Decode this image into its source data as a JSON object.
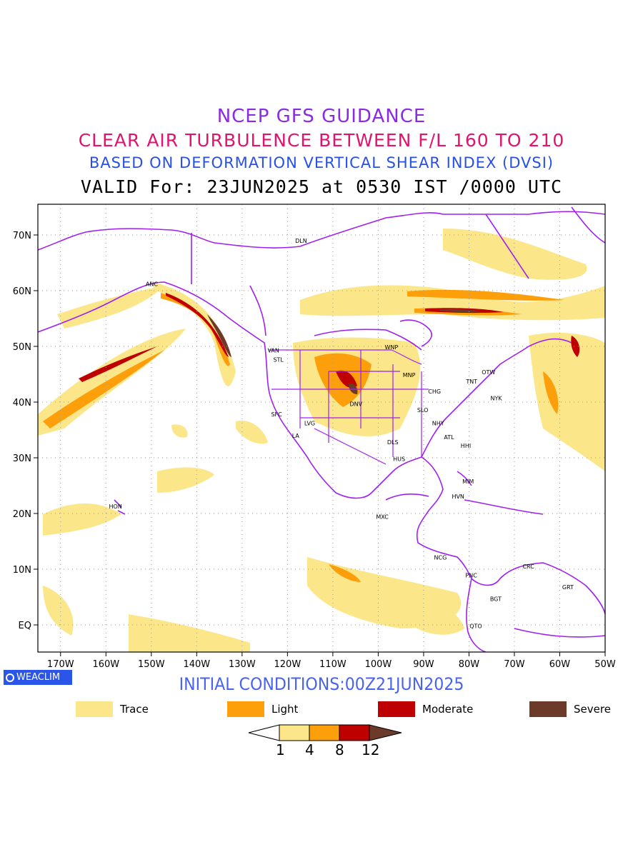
{
  "titles": {
    "line1": "NCEP GFS GUIDANCE",
    "line2": "CLEAR AIR TURBULENCE BETWEEN F/L 160 TO 210",
    "line3": "BASED ON DEFORMATION VERTICAL SHEAR INDEX (DVSI)",
    "line4": "VALID For: 23JUN2025 at 0530 IST /0000 UTC"
  },
  "colors": {
    "line1": "#8a2be2",
    "line2": "#e0146e",
    "line3": "#2850e6",
    "line4": "#000000",
    "coastline": "#a020f0",
    "trace": "#fce68a",
    "light": "#fd9f0b",
    "moderate": "#bf0000",
    "severe": "#6b3a28"
  },
  "map": {
    "lat_labels": [
      "70N",
      "60N",
      "50N",
      "40N",
      "30N",
      "20N",
      "10N",
      "EQ"
    ],
    "lon_labels": [
      "170W",
      "160W",
      "150W",
      "140W",
      "130W",
      "120W",
      "110W",
      "100W",
      "90W",
      "80W",
      "70W",
      "60W",
      "50W"
    ],
    "stations": [
      {
        "code": "ANC",
        "lon": -149.9,
        "lat": 61.2
      },
      {
        "code": "DLN",
        "lon": -117.0,
        "lat": 69.0
      },
      {
        "code": "VAN",
        "lon": -123.1,
        "lat": 49.3
      },
      {
        "code": "STL",
        "lon": -122.0,
        "lat": 47.6
      },
      {
        "code": "WNP",
        "lon": -97.1,
        "lat": 49.9
      },
      {
        "code": "MNP",
        "lon": -93.2,
        "lat": 44.9
      },
      {
        "code": "OTW",
        "lon": -75.7,
        "lat": 45.4
      },
      {
        "code": "TNT",
        "lon": -79.4,
        "lat": 43.7
      },
      {
        "code": "CHG",
        "lon": -87.6,
        "lat": 41.9
      },
      {
        "code": "NYK",
        "lon": -74.0,
        "lat": 40.7
      },
      {
        "code": "DNV",
        "lon": -104.9,
        "lat": 39.7
      },
      {
        "code": "SFC",
        "lon": -122.4,
        "lat": 37.8
      },
      {
        "code": "LVG",
        "lon": -115.1,
        "lat": 36.2
      },
      {
        "code": "SLO",
        "lon": -90.2,
        "lat": 38.6
      },
      {
        "code": "NHY",
        "lon": -86.8,
        "lat": 36.2
      },
      {
        "code": "LA",
        "lon": -118.2,
        "lat": 34.0
      },
      {
        "code": "ATL",
        "lon": -84.4,
        "lat": 33.7
      },
      {
        "code": "DLS",
        "lon": -96.8,
        "lat": 32.8
      },
      {
        "code": "HHI",
        "lon": -80.7,
        "lat": 32.2
      },
      {
        "code": "HUS",
        "lon": -95.4,
        "lat": 29.8
      },
      {
        "code": "MIM",
        "lon": -80.2,
        "lat": 25.8
      },
      {
        "code": "HVN",
        "lon": -82.4,
        "lat": 23.1
      },
      {
        "code": "HON",
        "lon": -157.9,
        "lat": 21.3
      },
      {
        "code": "MXC",
        "lon": -99.1,
        "lat": 19.4
      },
      {
        "code": "NCG",
        "lon": -86.3,
        "lat": 12.1
      },
      {
        "code": "CRC",
        "lon": -66.9,
        "lat": 10.5
      },
      {
        "code": "PNC",
        "lon": -79.5,
        "lat": 8.9
      },
      {
        "code": "GRT",
        "lon": -58.2,
        "lat": 6.8
      },
      {
        "code": "BGT",
        "lon": -74.1,
        "lat": 4.7
      },
      {
        "code": "QTO",
        "lon": -78.5,
        "lat": -0.2
      }
    ]
  },
  "branding": {
    "logo_text": "WEACLIM"
  },
  "initial_conditions": "INITIAL CONDITIONS:00Z21JUN2025",
  "legend": [
    {
      "label": "Trace",
      "color": "#fce68a"
    },
    {
      "label": "Light",
      "color": "#fd9f0b"
    },
    {
      "label": "Moderate",
      "color": "#bf0000"
    },
    {
      "label": "Severe",
      "color": "#6b3a28"
    }
  ],
  "colorbar": {
    "labels": [
      "1",
      "4",
      "8",
      "12"
    ]
  }
}
